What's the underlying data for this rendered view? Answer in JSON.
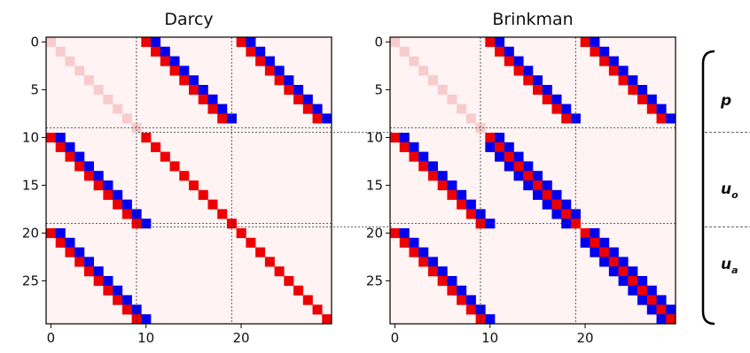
{
  "chart_data": [
    {
      "type": "heatmap",
      "title": "Darcy",
      "size": 30,
      "xticks": [
        0,
        10,
        20
      ],
      "yticks": [
        0,
        5,
        10,
        15,
        20,
        25
      ],
      "block_boundaries": [
        9.5,
        19.5
      ],
      "colors": {
        "red": "#ee0000",
        "blue": "#0000ee",
        "faint": "#f8cccc",
        "background": "#fff3f3"
      },
      "segments": [
        {
          "row0": 0,
          "col0": 0,
          "len": 10,
          "style": "faint"
        },
        {
          "row0": 0,
          "col0": 10,
          "len": 9,
          "style": "red-blue"
        },
        {
          "row0": 0,
          "col0": 20,
          "len": 9,
          "style": "red-blue"
        },
        {
          "row0": 10,
          "col0": 0,
          "len": 10,
          "style": "red-blue"
        },
        {
          "row0": 10,
          "col0": 10,
          "len": 10,
          "style": "red"
        },
        {
          "row0": 20,
          "col0": 0,
          "len": 10,
          "style": "red-blue"
        },
        {
          "row0": 20,
          "col0": 20,
          "len": 10,
          "style": "red"
        }
      ]
    },
    {
      "type": "heatmap",
      "title": "Brinkman",
      "size": 30,
      "xticks": [
        0,
        10,
        20
      ],
      "yticks": [
        0,
        5,
        10,
        15,
        20,
        25
      ],
      "block_boundaries": [
        9.5,
        19.5
      ],
      "colors": {
        "red": "#ee0000",
        "blue": "#0000ee",
        "faint": "#f8cccc",
        "background": "#fff3f3"
      },
      "segments": [
        {
          "row0": 0,
          "col0": 0,
          "len": 10,
          "style": "faint"
        },
        {
          "row0": 0,
          "col0": 10,
          "len": 9,
          "style": "red-blue"
        },
        {
          "row0": 0,
          "col0": 20,
          "len": 9,
          "style": "red-blue"
        },
        {
          "row0": 10,
          "col0": 0,
          "len": 10,
          "style": "red-blue"
        },
        {
          "row0": 10,
          "col0": 10,
          "len": 10,
          "style": "tri"
        },
        {
          "row0": 20,
          "col0": 0,
          "len": 10,
          "style": "red-blue"
        },
        {
          "row0": 20,
          "col0": 20,
          "len": 10,
          "style": "tri"
        }
      ]
    }
  ],
  "block_labels": [
    {
      "base": "p",
      "sub": ""
    },
    {
      "base": "u",
      "sub": "o"
    },
    {
      "base": "u",
      "sub": "a"
    }
  ]
}
